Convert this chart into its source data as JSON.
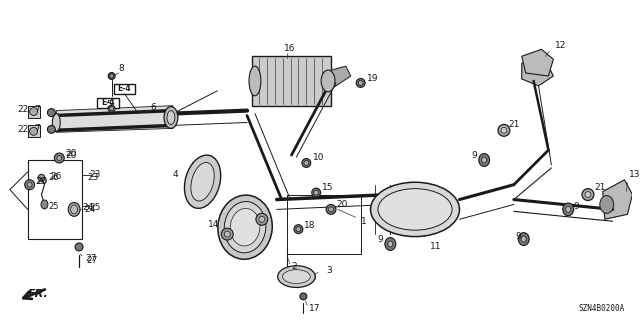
{
  "bg_color": "#ffffff",
  "diagram_code": "SZN4B0200A",
  "figsize": [
    6.4,
    3.2
  ],
  "dpi": 100,
  "gray": "#1a1a1a",
  "light": "#bbbbbb",
  "mid": "#888888",
  "lw_main": 1.2,
  "lw_thin": 0.6,
  "lw_med": 0.9
}
